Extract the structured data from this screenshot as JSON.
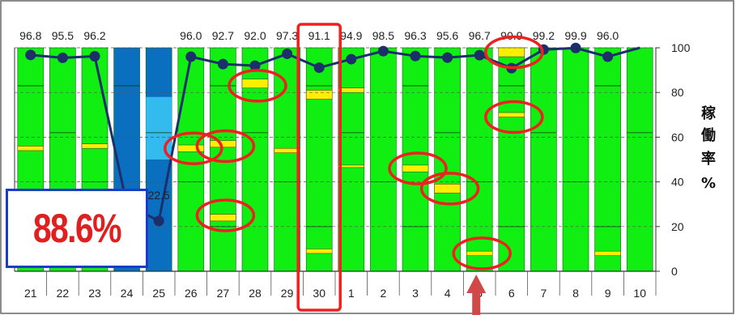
{
  "chart_data": {
    "type": "bar",
    "ylabel": [
      "稼",
      "働",
      "率",
      "%"
    ],
    "ylim": [
      0,
      100
    ],
    "yticks": [
      "0",
      "20",
      "40",
      "60",
      "80",
      "100"
    ],
    "categories": [
      "21",
      "22",
      "23",
      "24",
      "25",
      "26",
      "27",
      "28",
      "29",
      "30",
      "1",
      "2",
      "3",
      "4",
      "5",
      "6",
      "7",
      "8",
      "9",
      "10"
    ],
    "series": [
      {
        "values": [
          96.8,
          95.5,
          96.2,
          null,
          22.5,
          96.0,
          92.7,
          92.0,
          97.3,
          91.1,
          94.9,
          98.5,
          96.3,
          95.6,
          96.7,
          90.9,
          99.2,
          99.9,
          96.0,
          100
        ]
      }
    ],
    "data_labels": [
      "96.8",
      "95.5",
      "96.2",
      "",
      "22.5",
      "96.0",
      "92.7",
      "92.0",
      "97.3",
      "91.1",
      "94.9",
      "98.5",
      "96.3",
      "95.6",
      "96.7",
      "90.9",
      "99.2",
      "99.9",
      "96.0",
      ""
    ],
    "bar_colors": [
      "green",
      "green",
      "green",
      "blue",
      "blue",
      "green",
      "green",
      "green",
      "green",
      "green",
      "green",
      "green",
      "green",
      "green",
      "green",
      "green",
      "green",
      "green",
      "green",
      "green"
    ],
    "stops": [
      [
        [
          55,
          2
        ]
      ],
      [],
      [
        [
          56,
          2
        ]
      ],
      [],
      [],
      [
        [
          55,
          3
        ]
      ],
      [
        [
          57,
          3
        ],
        [
          24,
          3
        ]
      ],
      [
        [
          84,
          4
        ]
      ],
      [
        [
          54,
          2
        ]
      ],
      [
        [
          79,
          4
        ],
        [
          9,
          2
        ]
      ],
      [
        [
          81,
          2
        ],
        [
          47,
          1
        ]
      ],
      [],
      [
        [
          46,
          3
        ]
      ],
      [
        [
          37,
          4
        ]
      ],
      [
        [
          8,
          2
        ]
      ],
      [
        [
          98,
          4
        ],
        [
          70,
          2
        ]
      ],
      [],
      [],
      [
        [
          8,
          2
        ]
      ],
      []
    ],
    "highlights": [
      {
        "cat": 5,
        "y": 55
      },
      {
        "cat": 6,
        "y": 56
      },
      {
        "cat": 6,
        "y": 25
      },
      {
        "cat": 7,
        "y": 83
      },
      {
        "cat": 12,
        "y": 46
      },
      {
        "cat": 13,
        "y": 37
      },
      {
        "cat": 14,
        "y": 8
      },
      {
        "cat": 15,
        "y": 98
      },
      {
        "cat": 15,
        "y": 69
      }
    ],
    "selected_category": "30",
    "pointer_category": "5",
    "summary_value": "88.6%",
    "colors": {
      "green": "#11ee11",
      "blue": "#0b6fc0",
      "light_blue": "#33bbee",
      "stop": "#ffee00",
      "line": "#1c2f6b",
      "highlight": "#ee2020"
    }
  }
}
